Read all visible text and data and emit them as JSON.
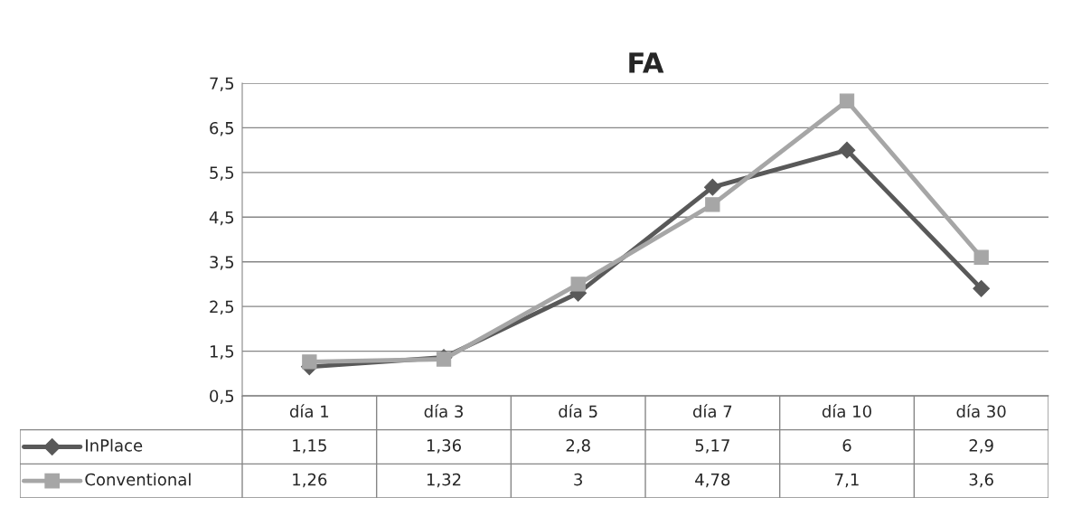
{
  "chart_data": {
    "type": "line",
    "title": "FA",
    "categories": [
      "día 1",
      "día 3",
      "día 5",
      "día 7",
      "día 10",
      "día 30"
    ],
    "series": [
      {
        "name": "InPlace",
        "color": "#595959",
        "marker": "diamond",
        "values": [
          1.15,
          1.36,
          2.8,
          5.17,
          6,
          2.9
        ],
        "value_labels": [
          "1,15",
          "1,36",
          "2,8",
          "5,17",
          "6",
          "2,9"
        ]
      },
      {
        "name": "Conventional",
        "color": "#a6a6a6",
        "marker": "square",
        "values": [
          1.26,
          1.32,
          3,
          4.78,
          7.1,
          3.6
        ],
        "value_labels": [
          "1,26",
          "1,32",
          "3",
          "4,78",
          "7,1",
          "3,6"
        ]
      }
    ],
    "ylim": [
      0.5,
      7.5
    ],
    "yticks": [
      {
        "value": 0.5,
        "label": "0,5"
      },
      {
        "value": 1.5,
        "label": "1,5"
      },
      {
        "value": 2.5,
        "label": "2,5"
      },
      {
        "value": 3.5,
        "label": "3,5"
      },
      {
        "value": 4.5,
        "label": "4,5"
      },
      {
        "value": 5.5,
        "label": "5,5"
      },
      {
        "value": 6.5,
        "label": "6,5"
      },
      {
        "value": 7.5,
        "label": "7,5"
      }
    ],
    "grid": "y",
    "legend": "bottom",
    "line_style": "solid"
  }
}
